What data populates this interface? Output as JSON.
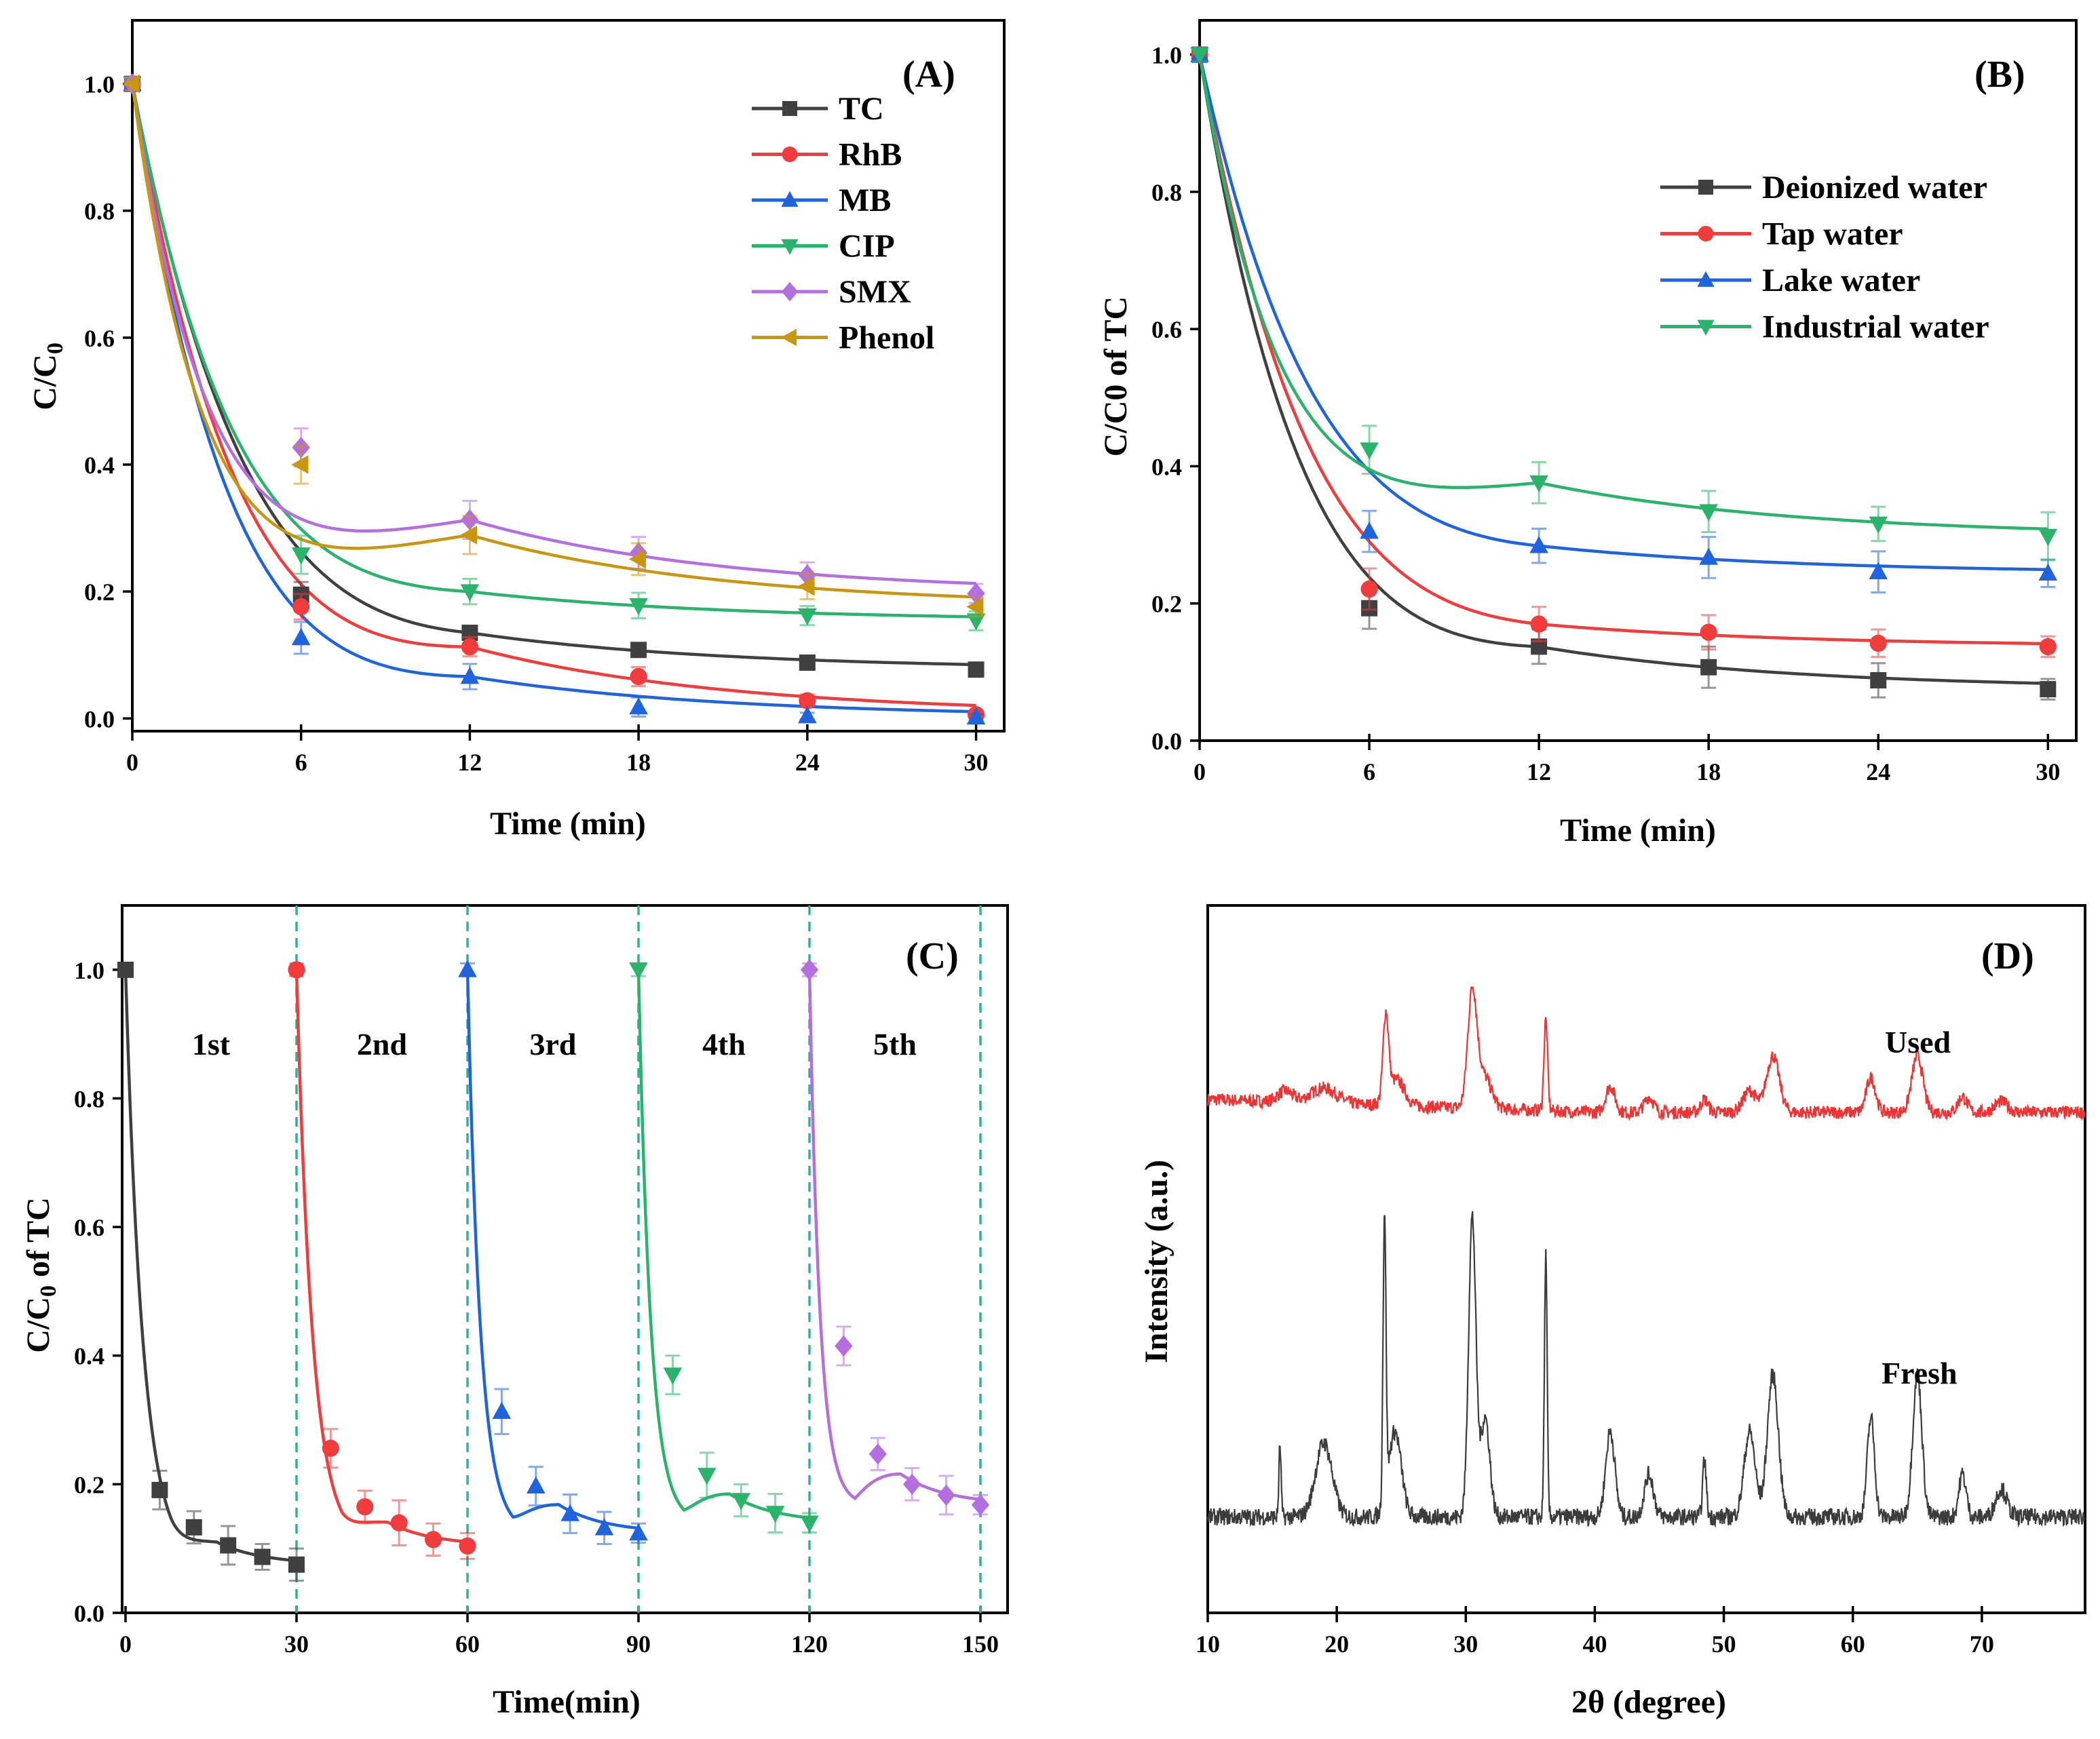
{
  "figure": {
    "colors": {
      "black": "#404040",
      "red": "#f03c3c",
      "blue": "#1f64dc",
      "green": "#2ab36a",
      "purple": "#b46ee0",
      "gold": "#c8960f",
      "dash": "#2ab39a",
      "red_xrd": "#f03232",
      "dark_xrd": "#3c3c3c"
    }
  },
  "chart_data": [
    {
      "panel": "(A)",
      "type": "scatter",
      "xlabel": "Time (min)",
      "ylabel": "C/C0",
      "xlim": [
        0,
        31
      ],
      "ylim": [
        -0.02,
        1.1
      ],
      "xticks": [
        0,
        6,
        12,
        18,
        24,
        30
      ],
      "xtick_labels": [
        "0",
        "6",
        "12",
        "18",
        "24",
        "30"
      ],
      "yticks": [
        0.0,
        0.2,
        0.4,
        0.6,
        0.8,
        1.0
      ],
      "ytick_labels": [
        "0.0",
        "0.2",
        "0.4",
        "0.6",
        "0.8",
        "1.0"
      ],
      "legend": "top-right",
      "x": [
        0,
        6,
        12,
        18,
        24,
        30
      ],
      "series": [
        {
          "name": "TC",
          "color": "#404040",
          "marker": "square",
          "values": [
            1.0,
            0.195,
            0.135,
            0.108,
            0.088,
            0.077
          ],
          "errors": [
            0.01,
            0.02,
            0.01,
            0.01,
            0.01,
            0.01
          ],
          "fit": [
            0.93,
            0.4,
            0.12,
            0.065
          ]
        },
        {
          "name": "RhB",
          "color": "#f03c3c",
          "marker": "circle",
          "values": [
            1.0,
            0.176,
            0.113,
            0.066,
            0.028,
            0.006
          ],
          "errors": [
            0.01,
            0.02,
            0.015,
            0.015,
            0.01,
            0.005
          ],
          "fit": [
            0.85,
            0.38,
            0.27,
            0.035
          ]
        },
        {
          "name": "MB",
          "color": "#1f64dc",
          "marker": "triangle-up",
          "values": [
            1.0,
            0.127,
            0.066,
            0.018,
            0.004,
            0.002
          ],
          "errors": [
            0.01,
            0.025,
            0.02,
            0.015,
            0.005,
            0.005
          ],
          "fit": [
            0.94,
            0.34,
            0.16,
            0.12
          ]
        },
        {
          "name": "CIP",
          "color": "#2ab36a",
          "marker": "triangle-down",
          "values": [
            1.0,
            0.258,
            0.2,
            0.178,
            0.162,
            0.154
          ],
          "errors": [
            0.01,
            0.03,
            0.02,
            0.02,
            0.015,
            0.015
          ],
          "fit": [
            0.8,
            0.36,
            0.2,
            0.02
          ]
        },
        {
          "name": "SMX",
          "color": "#b46ee0",
          "marker": "diamond",
          "values": [
            1.0,
            0.427,
            0.313,
            0.261,
            0.226,
            0.197
          ],
          "errors": [
            0.01,
            0.03,
            0.03,
            0.025,
            0.02,
            0.015
          ],
          "fit": [
            0.63,
            0.27,
            0.37,
            0.04
          ]
        },
        {
          "name": "Phenol",
          "color": "#c8960f",
          "marker": "triangle-left",
          "values": [
            1.0,
            0.4,
            0.289,
            0.251,
            0.208,
            0.176
          ],
          "errors": [
            0.01,
            0.03,
            0.03,
            0.025,
            0.02,
            0.015
          ],
          "fit": [
            0.64,
            0.25,
            0.36,
            0.05
          ]
        }
      ]
    },
    {
      "panel": "(B)",
      "type": "scatter",
      "xlabel": "Time (min)",
      "ylabel": "C/C0 of TC",
      "xlim": [
        0,
        31
      ],
      "ylim": [
        0,
        1.05
      ],
      "xticks": [
        0,
        6,
        12,
        18,
        24,
        30
      ],
      "xtick_labels": [
        "0",
        "6",
        "12",
        "18",
        "24",
        "30"
      ],
      "yticks": [
        0.0,
        0.2,
        0.4,
        0.6,
        0.8,
        1.0
      ],
      "ytick_labels": [
        "0.0",
        "0.2",
        "0.4",
        "0.6",
        "0.8",
        "1.0"
      ],
      "legend": "top-right",
      "x": [
        0,
        6,
        12,
        18,
        24,
        30
      ],
      "series": [
        {
          "name": "Deionized water",
          "color": "#404040",
          "marker": "square",
          "values": [
            1.0,
            0.193,
            0.137,
            0.107,
            0.088,
            0.075
          ],
          "errors": [
            0.01,
            0.03,
            0.025,
            0.03,
            0.025,
            0.015
          ],
          "fit": [
            0.9,
            0.36,
            0.13,
            0.05
          ]
        },
        {
          "name": "Tap water",
          "color": "#f03c3c",
          "marker": "circle",
          "values": [
            1.0,
            0.221,
            0.17,
            0.158,
            0.142,
            0.137
          ],
          "errors": [
            0.01,
            0.03,
            0.025,
            0.025,
            0.02,
            0.015
          ],
          "fit": [
            0.845,
            0.38,
            0.155,
            0.025
          ]
        },
        {
          "name": "Lake water",
          "color": "#1f64dc",
          "marker": "triangle-up",
          "values": [
            1.0,
            0.305,
            0.284,
            0.267,
            0.246,
            0.244
          ],
          "errors": [
            0.01,
            0.03,
            0.025,
            0.03,
            0.03,
            0.02
          ],
          "fit": [
            0.74,
            0.4,
            0.26,
            0.015
          ]
        },
        {
          "name": "Industrial water",
          "color": "#2ab36a",
          "marker": "triangle-down",
          "values": [
            1.0,
            0.424,
            0.376,
            0.334,
            0.316,
            0.298
          ],
          "errors": [
            0.01,
            0.035,
            0.03,
            0.03,
            0.025,
            0.035
          ],
          "fit": [
            0.61,
            0.28,
            0.39,
            0.03
          ]
        }
      ]
    },
    {
      "panel": "(C)",
      "type": "scatter",
      "xlabel": "Time(min)",
      "ylabel": "C/C0 of TC",
      "xlim": [
        0,
        156
      ],
      "ylim": [
        0,
        1.1
      ],
      "xticks": [
        0,
        30,
        60,
        90,
        120,
        150
      ],
      "xtick_labels": [
        "0",
        "30",
        "60",
        "90",
        "120",
        "150"
      ],
      "yticks": [
        0.0,
        0.2,
        0.4,
        0.6,
        0.8,
        1.0
      ],
      "ytick_labels": [
        "0.0",
        "0.2",
        "0.4",
        "0.6",
        "0.8",
        "1.0"
      ],
      "cycle_boundaries": [
        30,
        60,
        90,
        120,
        150
      ],
      "series": [
        {
          "name": "1st",
          "color": "#404040",
          "marker": "square",
          "x": [
            0,
            6,
            12,
            18,
            24,
            30
          ],
          "values": [
            1.0,
            0.191,
            0.133,
            0.105,
            0.087,
            0.075
          ],
          "errors": [
            0.01,
            0.03,
            0.025,
            0.03,
            0.02,
            0.025
          ],
          "fit": [
            0.91,
            0.5,
            0.09,
            0.03
          ]
        },
        {
          "name": "2nd",
          "color": "#f03c3c",
          "marker": "circle",
          "x": [
            30,
            36,
            42,
            48,
            54,
            60
          ],
          "values": [
            1.0,
            0.256,
            0.165,
            0.14,
            0.114,
            0.104
          ],
          "errors": [
            0.01,
            0.03,
            0.025,
            0.035,
            0.025,
            0.02
          ],
          "fit": [
            0.875,
            0.45,
            0.125,
            0.01
          ]
        },
        {
          "name": "3rd",
          "color": "#1f64dc",
          "marker": "triangle-up",
          "x": [
            60,
            66,
            72,
            78,
            84,
            90
          ],
          "values": [
            1.0,
            0.313,
            0.197,
            0.154,
            0.132,
            0.124
          ],
          "errors": [
            0.01,
            0.035,
            0.03,
            0.03,
            0.025,
            0.015
          ],
          "fit": [
            0.87,
            0.36,
            0.13,
            0.012
          ]
        },
        {
          "name": "4th",
          "color": "#2ab36a",
          "marker": "triangle-down",
          "x": [
            90,
            96,
            102,
            108,
            114,
            120
          ],
          "values": [
            1.0,
            0.37,
            0.214,
            0.175,
            0.155,
            0.14
          ],
          "errors": [
            0.01,
            0.03,
            0.035,
            0.025,
            0.03,
            0.015
          ],
          "fit": [
            0.855,
            0.34,
            0.145,
            0.01
          ]
        },
        {
          "name": "5th",
          "color": "#b46ee0",
          "marker": "diamond",
          "x": [
            120,
            126,
            132,
            138,
            144,
            150
          ],
          "values": [
            1.0,
            0.415,
            0.247,
            0.2,
            0.183,
            0.168
          ],
          "errors": [
            0.01,
            0.03,
            0.025,
            0.025,
            0.03,
            0.015
          ],
          "fit": [
            0.83,
            0.29,
            0.17,
            0.015
          ]
        }
      ]
    },
    {
      "panel": "(D)",
      "type": "line",
      "xlabel": "2θ (degree)",
      "ylabel": "Intensity (a.u.)",
      "xlim": [
        10,
        78
      ],
      "xticks": [
        10,
        20,
        30,
        40,
        50,
        60,
        70
      ],
      "xtick_labels": [
        "10",
        "20",
        "30",
        "40",
        "50",
        "60",
        "70"
      ],
      "series": [
        {
          "name": "Used",
          "color": "#f03232",
          "baseline": 0.63,
          "peaks": [
            [
              16,
              0.05,
              0.8
            ],
            [
              19,
              0.07,
              1.4
            ],
            [
              23.8,
              0.38,
              0.3
            ],
            [
              24.6,
              0.12,
              0.9
            ],
            [
              30.5,
              0.52,
              0.5
            ],
            [
              31.4,
              0.15,
              0.8
            ],
            [
              36.2,
              0.42,
              0.2
            ],
            [
              41.2,
              0.12,
              0.5
            ],
            [
              44.2,
              0.07,
              0.5
            ],
            [
              48.5,
              0.06,
              0.4
            ],
            [
              52,
              0.1,
              0.7
            ],
            [
              53.8,
              0.26,
              0.7
            ],
            [
              61.4,
              0.16,
              0.5
            ],
            [
              65,
              0.26,
              0.6
            ],
            [
              68.5,
              0.07,
              0.5
            ],
            [
              71.5,
              0.05,
              0.7
            ]
          ]
        },
        {
          "name": "Fresh",
          "color": "#3c3c3c",
          "baseline": 0.1,
          "peaks": [
            [
              15.6,
              0.25,
              0.12
            ],
            [
              19,
              0.26,
              0.9
            ],
            [
              23.7,
              1.0,
              0.16
            ],
            [
              24.5,
              0.3,
              0.7
            ],
            [
              30.5,
              1.05,
              0.4
            ],
            [
              31.5,
              0.35,
              0.5
            ],
            [
              36.2,
              0.92,
              0.15
            ],
            [
              41.2,
              0.3,
              0.5
            ],
            [
              44.2,
              0.15,
              0.5
            ],
            [
              48.5,
              0.2,
              0.2
            ],
            [
              52,
              0.3,
              0.6
            ],
            [
              53.8,
              0.5,
              0.6
            ],
            [
              61.4,
              0.35,
              0.4
            ],
            [
              65,
              0.5,
              0.5
            ],
            [
              68.5,
              0.15,
              0.4
            ],
            [
              71.5,
              0.1,
              0.6
            ]
          ]
        }
      ]
    }
  ]
}
